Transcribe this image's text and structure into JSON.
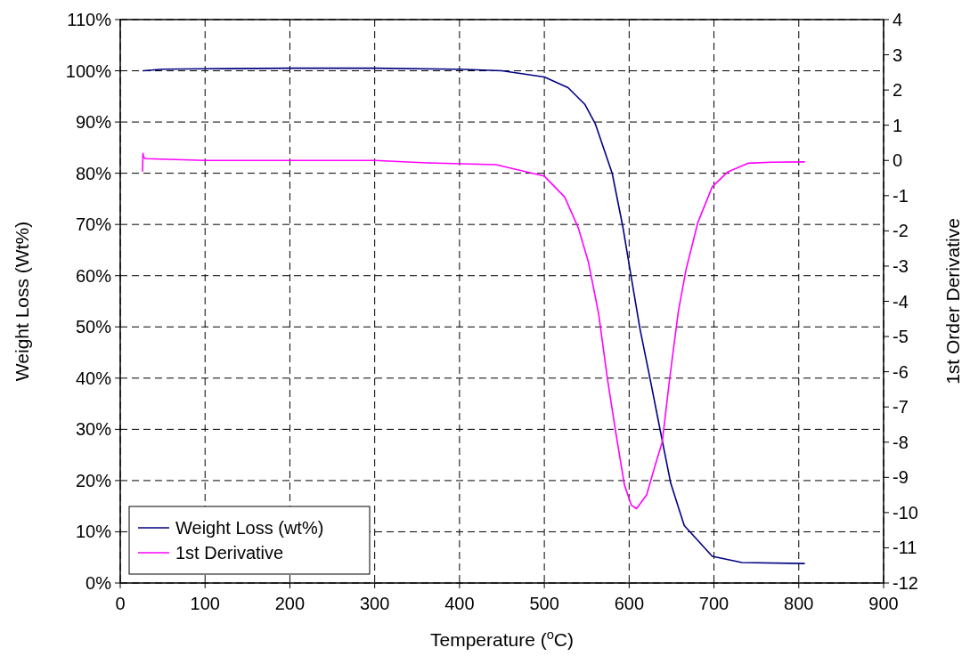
{
  "chart_data": {
    "type": "line",
    "xlabel": "Temperature ($^{o}$C)",
    "ylabel": "Weight Loss (Wt%)",
    "y2label": "1st Order Derivative",
    "xlim": [
      0,
      900
    ],
    "xticks": [
      0,
      100,
      200,
      300,
      400,
      500,
      600,
      700,
      800,
      900
    ],
    "ylim": [
      0,
      110
    ],
    "yticks": [
      {
        "value": 0,
        "label": "0%"
      },
      {
        "value": 10,
        "label": "10%"
      },
      {
        "value": 20,
        "label": "20%"
      },
      {
        "value": 30,
        "label": "30%"
      },
      {
        "value": 40,
        "label": "40%"
      },
      {
        "value": 50,
        "label": "50%"
      },
      {
        "value": 60,
        "label": "60%"
      },
      {
        "value": 70,
        "label": "70%"
      },
      {
        "value": 80,
        "label": "80%"
      },
      {
        "value": 90,
        "label": "90%"
      },
      {
        "value": 100,
        "label": "100%"
      },
      {
        "value": 110,
        "label": "110%"
      }
    ],
    "y2lim": [
      -12,
      4
    ],
    "y2ticks": [
      -12,
      -11,
      -10,
      -9,
      -8,
      -7,
      -6,
      -5,
      -4,
      -3,
      -2,
      -1,
      0,
      1,
      2,
      3,
      4
    ],
    "grid": true,
    "legend": "bottom left",
    "line_style": "solid",
    "marker": "none",
    "series": [
      {
        "name": "Weight Loss (wt%)",
        "color": "#000080",
        "x": [
          27,
          50,
          100,
          200,
          300,
          400,
          450,
          500,
          528,
          548,
          560,
          580,
          592.5,
          602.6,
          612.8,
          625,
          637,
          649,
          665,
          698,
          733,
          806.5
        ],
        "values": [
          100.0,
          100.3,
          100.4,
          100.5,
          100.5,
          100.3,
          100.0,
          98.8,
          96.7,
          93.4,
          89.7,
          80.0,
          69.6,
          59.6,
          49.6,
          39.6,
          29.5,
          19.5,
          11.2,
          5.2,
          4.0,
          3.8
        ]
      },
      {
        "name": "1st Derivative",
        "color": "#ff00ff",
        "axis": "y2",
        "x": [
          26.3,
          26.8,
          27.5,
          30,
          100,
          200,
          300,
          362,
          443,
          499.7,
          524,
          540,
          552,
          564,
          574.4,
          584.4,
          594.4,
          602.6,
          608.7,
          620.6,
          631,
          639,
          647.6,
          658,
          667,
          681,
          698,
          716,
          740,
          768,
          806.6
        ],
        "values": [
          -0.3,
          0.2,
          0.1,
          0.05,
          0.0,
          0.0,
          0.0,
          -0.07,
          -0.12,
          -0.44,
          -1.04,
          -1.91,
          -2.89,
          -4.35,
          -6.2,
          -7.75,
          -9.21,
          -9.79,
          -9.89,
          -9.5,
          -8.63,
          -8.0,
          -6.23,
          -4.29,
          -3.11,
          -1.76,
          -0.75,
          -0.33,
          -0.08,
          -0.05,
          -0.04
        ]
      }
    ]
  }
}
